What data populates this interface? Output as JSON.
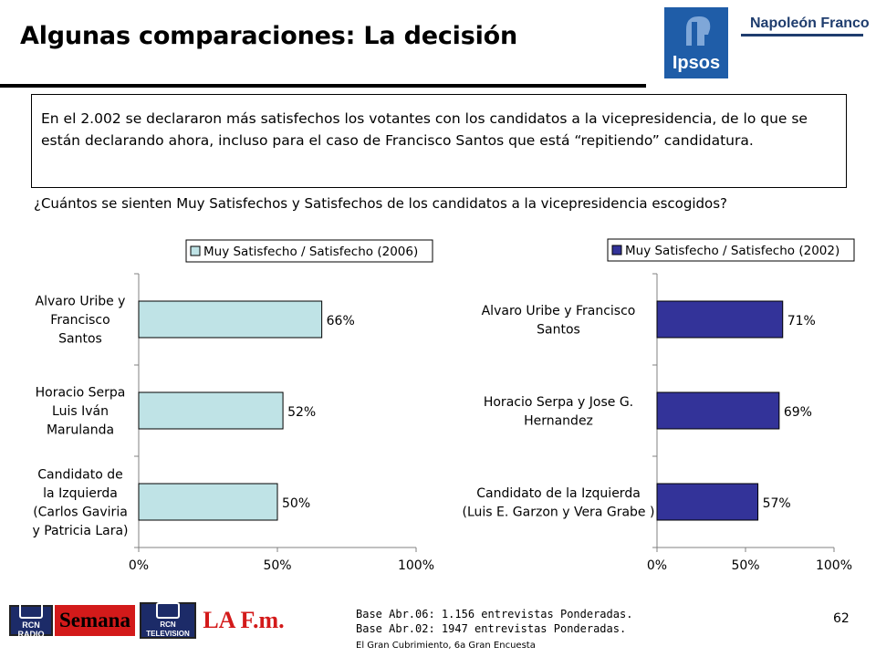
{
  "title": "Algunas comparaciones: La decisión",
  "intro": "En el 2.002 se declararon más satisfechos los votantes con los candidatos a la vicepresidencia, de lo que se están declarando ahora, incluso para el caso de Francisco Santos que está “repitiendo” candidatura.",
  "question": "¿Cuántos se sienten Muy Satisfechos y Satisfechos de los candidatos a la vicepresidencia escogidos?",
  "brand": {
    "name": "Napoleón Franco",
    "logo_text": "Ipsos",
    "color": "#1f5da8"
  },
  "chart_data": [
    {
      "type": "bar",
      "orientation": "horizontal",
      "categories": [
        [
          "Alvaro Uribe y",
          "Francisco",
          "Santos"
        ],
        [
          "Horacio Serpa",
          "Luis Iván",
          "Marulanda"
        ],
        [
          "Candidato de",
          "la Izquierda",
          "(Carlos Gaviria",
          "y Patricia Lara)"
        ]
      ],
      "series": [
        {
          "name": "Muy Satisfecho / Satisfecho (2006)",
          "values": [
            66,
            52,
            50
          ],
          "color": "#bfe3e6"
        }
      ],
      "value_labels": [
        "66%",
        "52%",
        "50%"
      ],
      "xlim": [
        0,
        100
      ],
      "x_ticks": [
        "0%",
        "50%",
        "100%"
      ],
      "legend": "top"
    },
    {
      "type": "bar",
      "orientation": "horizontal",
      "categories": [
        [
          "Alvaro Uribe y Francisco",
          "Santos"
        ],
        [
          "Horacio Serpa y  Jose G.",
          "Hernandez"
        ],
        [
          "Candidato de la Izquierda",
          "(Luis E. Garzon y Vera Grabe )"
        ]
      ],
      "series": [
        {
          "name": "Muy Satisfecho / Satisfecho (2002)",
          "values": [
            71,
            69,
            57
          ],
          "color": "#333399"
        }
      ],
      "value_labels": [
        "71%",
        "69%",
        "57%"
      ],
      "xlim": [
        0,
        100
      ],
      "x_ticks": [
        "0%",
        "50%",
        "100%"
      ],
      "legend": "top"
    }
  ],
  "footer": {
    "logos": {
      "rcn_radio": "RCN RADIO",
      "semana": "Semana",
      "rcn_tv": "RCN TELEVISION",
      "lafm": "LA F.m."
    },
    "base_lines": [
      "Base Abr.06: 1.156 entrevistas Ponderadas.",
      "Base Abr.02: 1947 entrevistas Ponderadas."
    ],
    "source": "El Gran Cubrimiento, 6a Gran Encuesta",
    "page": "62"
  }
}
